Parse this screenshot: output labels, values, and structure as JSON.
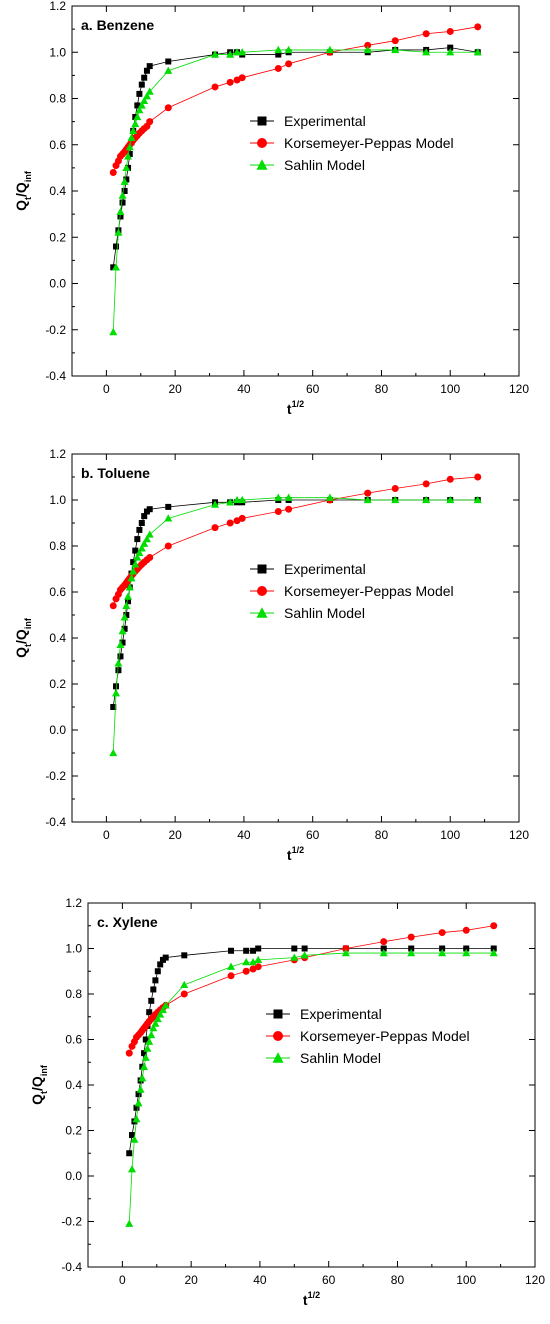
{
  "series_styles": [
    {
      "name": "Experimental",
      "color": "#000000",
      "marker": "square"
    },
    {
      "name": "Korsemeyer-Peppas Model",
      "color": "#ff0000",
      "marker": "circle"
    },
    {
      "name": "Sahlin Model",
      "color": "#00dd00",
      "marker": "triangle"
    }
  ],
  "chart_data": [
    {
      "type": "scatter",
      "title": "a. Benzene",
      "xlabel": "t",
      "xlabel_sup": "1/2",
      "ylabel": "Q",
      "ylabel_sub1": "t",
      "ylabel_mid": "/Q",
      "ylabel_sub2": "inf",
      "xlim": [
        -10,
        120
      ],
      "ylim": [
        -0.4,
        1.2
      ],
      "xticks": [
        "0",
        "20",
        "40",
        "60",
        "80",
        "100",
        "120"
      ],
      "yticks": [
        "-0.4",
        "-0.2",
        "0.0",
        "0.2",
        "0.4",
        "0.6",
        "0.8",
        "1.0",
        "1.2"
      ],
      "legend_position": "center-right",
      "grid": false,
      "series": [
        {
          "name": "Experimental",
          "x": [
            2.0,
            2.8,
            3.5,
            4.1,
            4.7,
            5.3,
            5.8,
            6.3,
            6.8,
            7.3,
            7.8,
            8.4,
            9.0,
            9.6,
            10.3,
            11.0,
            11.8,
            12.6,
            18.0,
            31.6,
            36.0,
            38.0,
            39.5,
            50.0,
            53.0,
            65.0,
            76.0,
            84.0,
            93.0,
            100.0,
            108.0
          ],
          "y": [
            0.07,
            0.16,
            0.23,
            0.29,
            0.35,
            0.4,
            0.45,
            0.5,
            0.56,
            0.61,
            0.66,
            0.72,
            0.77,
            0.82,
            0.86,
            0.89,
            0.92,
            0.94,
            0.96,
            0.99,
            1.0,
            1.0,
            0.99,
            0.99,
            1.0,
            1.0,
            1.0,
            1.01,
            1.01,
            1.02,
            1.0
          ]
        },
        {
          "name": "Korsemeyer-Peppas Model",
          "x": [
            2.0,
            2.8,
            3.5,
            4.1,
            4.7,
            5.3,
            5.8,
            6.3,
            6.8,
            7.3,
            7.8,
            8.4,
            9.0,
            9.6,
            10.3,
            11.0,
            11.8,
            12.6,
            18.0,
            31.6,
            36.0,
            38.0,
            39.5,
            50.0,
            53.0,
            65.0,
            76.0,
            84.0,
            93.0,
            100.0,
            108.0
          ],
          "y": [
            0.48,
            0.51,
            0.53,
            0.55,
            0.56,
            0.57,
            0.58,
            0.59,
            0.6,
            0.61,
            0.62,
            0.63,
            0.64,
            0.65,
            0.66,
            0.67,
            0.68,
            0.7,
            0.76,
            0.85,
            0.87,
            0.88,
            0.89,
            0.93,
            0.95,
            1.0,
            1.03,
            1.05,
            1.08,
            1.09,
            1.11
          ]
        },
        {
          "name": "Sahlin Model",
          "x": [
            2.0,
            2.8,
            3.5,
            4.1,
            4.7,
            5.3,
            5.8,
            6.3,
            6.8,
            7.3,
            7.8,
            8.4,
            9.0,
            9.6,
            10.3,
            11.0,
            11.8,
            12.6,
            18.0,
            31.6,
            36.0,
            38.0,
            39.5,
            50.0,
            53.0,
            65.0,
            76.0,
            84.0,
            93.0,
            100.0,
            108.0
          ],
          "y": [
            -0.21,
            0.07,
            0.22,
            0.31,
            0.38,
            0.44,
            0.5,
            0.55,
            0.59,
            0.63,
            0.66,
            0.69,
            0.72,
            0.75,
            0.77,
            0.79,
            0.81,
            0.83,
            0.92,
            0.99,
            0.99,
            1.0,
            1.0,
            1.01,
            1.01,
            1.01,
            1.01,
            1.01,
            1.0,
            1.0,
            1.0
          ]
        }
      ]
    },
    {
      "type": "scatter",
      "title": "b. Toluene",
      "xlabel": "t",
      "xlabel_sup": "1/2",
      "ylabel": "Q",
      "ylabel_sub1": "t",
      "ylabel_mid": "/Q",
      "ylabel_sub2": "inf",
      "xlim": [
        -10,
        120
      ],
      "ylim": [
        -0.4,
        1.2
      ],
      "xticks": [
        "0",
        "20",
        "40",
        "60",
        "80",
        "100",
        "120"
      ],
      "yticks": [
        "-0.4",
        "-0.2",
        "0.0",
        "0.2",
        "0.4",
        "0.6",
        "0.8",
        "1.0",
        "1.2"
      ],
      "legend_position": "center-right",
      "grid": false,
      "series": [
        {
          "name": "Experimental",
          "x": [
            2.0,
            2.8,
            3.5,
            4.1,
            4.7,
            5.3,
            5.8,
            6.3,
            6.8,
            7.3,
            7.8,
            8.4,
            9.0,
            9.6,
            10.3,
            11.0,
            11.8,
            12.6,
            18.0,
            31.6,
            36.0,
            38.0,
            39.5,
            50.0,
            53.0,
            65.0,
            76.0,
            84.0,
            93.0,
            100.0,
            108.0
          ],
          "y": [
            0.1,
            0.19,
            0.26,
            0.32,
            0.38,
            0.44,
            0.5,
            0.56,
            0.62,
            0.68,
            0.73,
            0.78,
            0.83,
            0.87,
            0.9,
            0.93,
            0.95,
            0.96,
            0.97,
            0.99,
            0.99,
            0.99,
            0.99,
            1.0,
            1.0,
            1.0,
            1.0,
            1.0,
            1.0,
            1.0,
            1.0
          ]
        },
        {
          "name": "Korsemeyer-Peppas Model",
          "x": [
            2.0,
            2.8,
            3.5,
            4.1,
            4.7,
            5.3,
            5.8,
            6.3,
            6.8,
            7.3,
            7.8,
            8.4,
            9.0,
            9.6,
            10.3,
            11.0,
            11.8,
            12.6,
            18.0,
            31.6,
            36.0,
            38.0,
            39.5,
            50.0,
            53.0,
            65.0,
            76.0,
            84.0,
            93.0,
            100.0,
            108.0
          ],
          "y": [
            0.54,
            0.57,
            0.59,
            0.61,
            0.62,
            0.63,
            0.64,
            0.65,
            0.66,
            0.67,
            0.68,
            0.69,
            0.7,
            0.71,
            0.72,
            0.73,
            0.74,
            0.75,
            0.8,
            0.88,
            0.9,
            0.91,
            0.92,
            0.95,
            0.96,
            1.0,
            1.03,
            1.05,
            1.07,
            1.09,
            1.1
          ]
        },
        {
          "name": "Sahlin Model",
          "x": [
            2.0,
            2.8,
            3.5,
            4.1,
            4.7,
            5.3,
            5.8,
            6.3,
            6.8,
            7.3,
            7.8,
            8.4,
            9.0,
            9.6,
            10.3,
            11.0,
            11.8,
            12.6,
            18.0,
            31.6,
            36.0,
            38.0,
            39.5,
            50.0,
            53.0,
            65.0,
            76.0,
            84.0,
            93.0,
            100.0,
            108.0
          ],
          "y": [
            -0.1,
            0.16,
            0.29,
            0.37,
            0.43,
            0.49,
            0.54,
            0.58,
            0.62,
            0.66,
            0.69,
            0.72,
            0.75,
            0.77,
            0.79,
            0.81,
            0.83,
            0.85,
            0.92,
            0.98,
            0.99,
            1.0,
            1.0,
            1.01,
            1.01,
            1.01,
            1.0,
            1.0,
            1.0,
            1.0,
            1.0
          ]
        }
      ]
    },
    {
      "type": "scatter",
      "title": "c. Xylene",
      "xlabel": "t",
      "xlabel_sup": "1/2",
      "ylabel": "Q",
      "ylabel_sub1": "t",
      "ylabel_mid": "/Q",
      "ylabel_sub2": "inf",
      "xlim": [
        -10,
        120
      ],
      "ylim": [
        -0.4,
        1.2
      ],
      "xticks": [
        "0",
        "20",
        "40",
        "60",
        "80",
        "100",
        "120"
      ],
      "yticks": [
        "-0.4",
        "-0.2",
        "0.0",
        "0.2",
        "0.4",
        "0.6",
        "0.8",
        "1.0",
        "1.2"
      ],
      "legend_position": "center-right",
      "grid": false,
      "series": [
        {
          "name": "Experimental",
          "x": [
            2.0,
            2.8,
            3.5,
            4.1,
            4.7,
            5.3,
            5.8,
            6.3,
            6.8,
            7.3,
            7.8,
            8.4,
            9.0,
            9.6,
            10.3,
            11.0,
            11.8,
            12.6,
            18.0,
            31.6,
            36.0,
            38.0,
            39.5,
            50.0,
            53.0,
            65.0,
            76.0,
            84.0,
            93.0,
            100.0,
            108.0
          ],
          "y": [
            0.1,
            0.18,
            0.24,
            0.3,
            0.36,
            0.42,
            0.48,
            0.54,
            0.6,
            0.66,
            0.72,
            0.77,
            0.82,
            0.86,
            0.9,
            0.93,
            0.95,
            0.96,
            0.97,
            0.99,
            0.99,
            0.99,
            1.0,
            1.0,
            1.0,
            1.0,
            1.0,
            1.0,
            1.0,
            1.0,
            1.0
          ]
        },
        {
          "name": "Korsemeyer-Peppas Model",
          "x": [
            2.0,
            2.8,
            3.5,
            4.1,
            4.7,
            5.3,
            5.8,
            6.3,
            6.8,
            7.3,
            7.8,
            8.4,
            9.0,
            9.6,
            10.3,
            11.0,
            11.8,
            12.6,
            18.0,
            31.6,
            36.0,
            38.0,
            39.5,
            50.0,
            53.0,
            65.0,
            76.0,
            84.0,
            93.0,
            100.0,
            108.0
          ],
          "y": [
            0.54,
            0.57,
            0.59,
            0.61,
            0.62,
            0.63,
            0.64,
            0.65,
            0.66,
            0.67,
            0.68,
            0.69,
            0.7,
            0.71,
            0.72,
            0.73,
            0.74,
            0.75,
            0.8,
            0.88,
            0.9,
            0.91,
            0.92,
            0.95,
            0.96,
            1.0,
            1.03,
            1.05,
            1.07,
            1.08,
            1.1
          ]
        },
        {
          "name": "Sahlin Model",
          "x": [
            2.0,
            2.8,
            3.5,
            4.1,
            4.7,
            5.3,
            5.8,
            6.3,
            6.8,
            7.3,
            7.8,
            8.4,
            9.0,
            9.6,
            10.3,
            11.0,
            11.8,
            12.6,
            18.0,
            31.6,
            36.0,
            38.0,
            39.5,
            50.0,
            53.0,
            65.0,
            76.0,
            84.0,
            93.0,
            100.0,
            108.0
          ],
          "y": [
            -0.21,
            0.03,
            0.16,
            0.25,
            0.32,
            0.38,
            0.43,
            0.48,
            0.52,
            0.56,
            0.59,
            0.62,
            0.65,
            0.67,
            0.69,
            0.71,
            0.73,
            0.75,
            0.84,
            0.92,
            0.94,
            0.94,
            0.95,
            0.96,
            0.97,
            0.98,
            0.98,
            0.98,
            0.98,
            0.98,
            0.98
          ]
        }
      ]
    }
  ]
}
